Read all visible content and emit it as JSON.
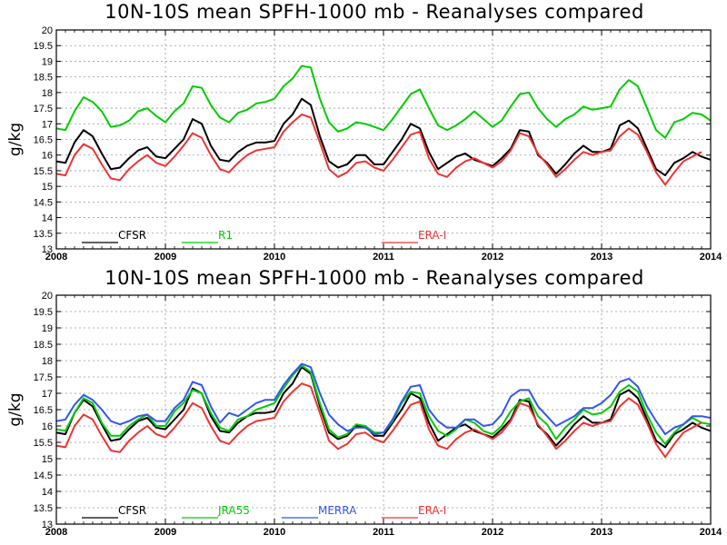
{
  "chart_data": [
    {
      "type": "line",
      "title": "10N-10S mean SPFH-1000 mb - Reanalyses compared",
      "ylabel": "g/kg",
      "xlabel": "",
      "xlim": [
        2008,
        2014
      ],
      "ylim": [
        13,
        20
      ],
      "y_ticks": [
        "13",
        "13.5",
        "14",
        "14.5",
        "15",
        "15.5",
        "16",
        "16.5",
        "17",
        "17.5",
        "18",
        "18.5",
        "19",
        "19.5",
        "20"
      ],
      "x_ticks": [
        "2008",
        "2009",
        "2010",
        "2011",
        "2012",
        "2013",
        "2014"
      ],
      "grid": true,
      "legend_position": "bottom",
      "series": [
        {
          "name": "CFSR",
          "color": "#000000",
          "start": 2008.0,
          "step": 0.0833333,
          "values": [
            15.8,
            15.75,
            16.4,
            16.8,
            16.6,
            16.05,
            15.55,
            15.6,
            15.9,
            16.15,
            16.25,
            15.95,
            15.9,
            16.2,
            16.5,
            17.15,
            17.0,
            16.3,
            15.85,
            15.8,
            16.1,
            16.3,
            16.4,
            16.4,
            16.45,
            17.0,
            17.3,
            17.8,
            17.6,
            16.6,
            15.8,
            15.6,
            15.7,
            16.0,
            16.0,
            15.7,
            15.7,
            16.1,
            16.5,
            17.0,
            16.85,
            16.1,
            15.55,
            15.75,
            15.95,
            16.05,
            15.85,
            15.75,
            15.65,
            15.9,
            16.2,
            16.8,
            16.75,
            16.0,
            15.75,
            15.4,
            15.7,
            16.05,
            16.3,
            16.1,
            16.1,
            16.2,
            16.95,
            17.1,
            16.85,
            16.2,
            15.55,
            15.35,
            15.75,
            15.9,
            16.1,
            15.95,
            15.85,
            16.0
          ]
        },
        {
          "name": "R1",
          "color": "#00cc00",
          "start": 2008.0,
          "step": 0.0833333,
          "values": [
            16.85,
            16.8,
            17.4,
            17.85,
            17.7,
            17.4,
            16.9,
            16.95,
            17.1,
            17.4,
            17.5,
            17.25,
            17.05,
            17.4,
            17.65,
            18.2,
            18.15,
            17.6,
            17.2,
            17.05,
            17.35,
            17.45,
            17.65,
            17.7,
            17.8,
            18.2,
            18.45,
            18.85,
            18.8,
            17.8,
            17.05,
            16.75,
            16.85,
            17.05,
            17.0,
            16.9,
            16.8,
            17.15,
            17.55,
            17.95,
            18.1,
            17.5,
            16.95,
            16.8,
            16.95,
            17.15,
            17.4,
            17.15,
            16.9,
            17.1,
            17.55,
            17.95,
            18.0,
            17.5,
            17.15,
            16.9,
            17.15,
            17.3,
            17.55,
            17.45,
            17.5,
            17.55,
            18.1,
            18.4,
            18.2,
            17.5,
            16.8,
            16.55,
            17.05,
            17.15,
            17.35,
            17.3,
            17.1,
            17.25
          ]
        },
        {
          "name": "ERA-I",
          "color": "#ee3333",
          "start": 2008.0,
          "step": 0.0833333,
          "values": [
            15.4,
            15.35,
            16.0,
            16.35,
            16.2,
            15.7,
            15.25,
            15.2,
            15.55,
            15.8,
            16.0,
            15.75,
            15.65,
            15.95,
            16.3,
            16.7,
            16.55,
            16.0,
            15.55,
            15.45,
            15.75,
            16.0,
            16.15,
            16.2,
            16.25,
            16.75,
            17.05,
            17.3,
            17.2,
            16.4,
            15.55,
            15.3,
            15.45,
            15.75,
            15.8,
            15.6,
            15.5,
            15.85,
            16.25,
            16.65,
            16.75,
            15.9,
            15.4,
            15.3,
            15.6,
            15.8,
            15.9,
            15.75,
            15.6,
            15.8,
            16.15,
            16.7,
            16.6,
            16.05,
            15.7,
            15.3,
            15.55,
            15.85,
            16.1,
            16.0,
            16.1,
            16.15,
            16.6,
            16.85,
            16.65,
            16.1,
            15.45,
            15.05,
            15.45,
            15.8,
            15.95,
            16.1
          ]
        }
      ]
    },
    {
      "type": "line",
      "title": "10N-10S mean SPFH-1000 mb - Reanalyses compared",
      "ylabel": "g/kg",
      "xlabel": "",
      "xlim": [
        2008,
        2014
      ],
      "ylim": [
        13,
        20
      ],
      "y_ticks": [
        "13",
        "13.5",
        "14",
        "14.5",
        "15",
        "15.5",
        "16",
        "16.5",
        "17",
        "17.5",
        "18",
        "18.5",
        "19",
        "19.5",
        "20"
      ],
      "x_ticks": [
        "2008",
        "2009",
        "2010",
        "2011",
        "2012",
        "2013",
        "2014"
      ],
      "grid": true,
      "legend_position": "bottom",
      "series": [
        {
          "name": "CFSR",
          "color": "#000000",
          "start": 2008.0,
          "step": 0.0833333,
          "values": [
            15.8,
            15.75,
            16.4,
            16.8,
            16.6,
            16.05,
            15.55,
            15.6,
            15.9,
            16.15,
            16.25,
            15.95,
            15.9,
            16.2,
            16.5,
            17.15,
            17.0,
            16.3,
            15.85,
            15.8,
            16.1,
            16.3,
            16.4,
            16.4,
            16.45,
            17.0,
            17.3,
            17.8,
            17.6,
            16.6,
            15.8,
            15.6,
            15.7,
            16.0,
            16.0,
            15.7,
            15.7,
            16.1,
            16.5,
            17.0,
            16.85,
            16.1,
            15.55,
            15.75,
            15.95,
            16.05,
            15.85,
            15.75,
            15.65,
            15.9,
            16.2,
            16.8,
            16.75,
            16.0,
            15.75,
            15.4,
            15.7,
            16.05,
            16.3,
            16.1,
            16.1,
            16.2,
            16.95,
            17.1,
            16.85,
            16.2,
            15.55,
            15.35,
            15.75,
            15.9,
            16.1,
            15.95,
            15.85,
            16.0
          ]
        },
        {
          "name": "JRA55",
          "color": "#00cc00",
          "start": 2008.0,
          "step": 0.0833333,
          "values": [
            15.9,
            15.85,
            16.4,
            16.85,
            16.7,
            16.1,
            15.7,
            15.7,
            16.0,
            16.2,
            16.35,
            16.0,
            16.0,
            16.45,
            16.7,
            17.1,
            17.0,
            16.4,
            15.95,
            15.85,
            16.2,
            16.3,
            16.5,
            16.6,
            16.7,
            17.15,
            17.55,
            17.85,
            17.65,
            16.7,
            15.9,
            15.65,
            15.75,
            16.05,
            16.0,
            15.8,
            15.8,
            16.15,
            16.7,
            17.05,
            17.0,
            16.3,
            15.85,
            15.7,
            15.9,
            16.2,
            16.1,
            15.85,
            15.75,
            16.0,
            16.45,
            16.75,
            16.85,
            16.3,
            16.05,
            15.6,
            15.95,
            16.2,
            16.5,
            16.35,
            16.4,
            16.6,
            17.05,
            17.25,
            17.05,
            16.35,
            15.8,
            15.45,
            15.8,
            16.05,
            16.25,
            16.1,
            16.05,
            16.05
          ]
        },
        {
          "name": "MERRA",
          "color": "#3355ee",
          "start": 2008.0,
          "step": 0.0833333,
          "values": [
            16.15,
            16.2,
            16.65,
            16.95,
            16.8,
            16.5,
            16.15,
            16.05,
            16.15,
            16.3,
            16.35,
            16.15,
            16.15,
            16.55,
            16.8,
            17.35,
            17.25,
            16.6,
            16.1,
            16.4,
            16.3,
            16.5,
            16.7,
            16.8,
            16.8,
            17.25,
            17.6,
            17.9,
            17.8,
            17.0,
            16.35,
            16.05,
            15.85,
            15.95,
            15.95,
            15.75,
            15.8,
            16.2,
            16.75,
            17.2,
            17.25,
            16.5,
            16.15,
            15.95,
            15.95,
            16.2,
            16.2,
            16.0,
            16.05,
            16.35,
            16.9,
            17.1,
            17.1,
            16.6,
            16.3,
            16.0,
            16.15,
            16.3,
            16.55,
            16.55,
            16.7,
            16.95,
            17.35,
            17.45,
            17.2,
            16.6,
            16.15,
            15.75,
            15.95,
            16.05,
            16.3,
            16.3,
            16.25,
            16.3
          ]
        },
        {
          "name": "ERA-I",
          "color": "#ee3333",
          "start": 2008.0,
          "step": 0.0833333,
          "values": [
            15.4,
            15.35,
            16.0,
            16.35,
            16.2,
            15.7,
            15.25,
            15.2,
            15.55,
            15.8,
            16.0,
            15.75,
            15.65,
            15.95,
            16.3,
            16.7,
            16.55,
            16.0,
            15.55,
            15.45,
            15.75,
            16.0,
            16.15,
            16.2,
            16.25,
            16.75,
            17.05,
            17.3,
            17.2,
            16.4,
            15.55,
            15.3,
            15.45,
            15.75,
            15.8,
            15.6,
            15.5,
            15.85,
            16.25,
            16.65,
            16.75,
            15.9,
            15.4,
            15.3,
            15.6,
            15.8,
            15.9,
            15.75,
            15.6,
            15.8,
            16.15,
            16.7,
            16.6,
            16.05,
            15.7,
            15.3,
            15.55,
            15.85,
            16.1,
            16.0,
            16.1,
            16.15,
            16.6,
            16.85,
            16.65,
            16.1,
            15.45,
            15.05,
            15.45,
            15.8,
            15.95,
            16.1
          ]
        }
      ]
    }
  ]
}
